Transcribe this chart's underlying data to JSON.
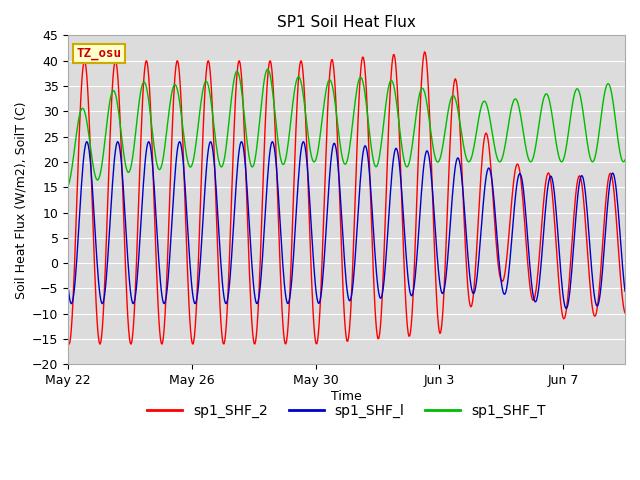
{
  "title": "SP1 Soil Heat Flux",
  "xlabel": "Time",
  "ylabel": "Soil Heat Flux (W/m2), SoilT (C)",
  "ylim": [
    -20,
    45
  ],
  "yticks": [
    -20,
    -15,
    -10,
    -5,
    0,
    5,
    10,
    15,
    20,
    25,
    30,
    35,
    40,
    45
  ],
  "bg_color": "#dcdcdc",
  "fig_color": "#ffffff",
  "tz_label": "TZ_osu",
  "tz_box_color": "#ffffcc",
  "tz_text_color": "#cc0000",
  "tz_edge_color": "#ccaa00",
  "line_colors": {
    "sp1_SHF_2": "#ff0000",
    "sp1_SHF_l": "#0000cc",
    "sp1_SHF_T": "#00bb00"
  },
  "legend_labels": [
    "sp1_SHF_2",
    "sp1_SHF_l",
    "sp1_SHF_T"
  ],
  "x_tick_labels": [
    "May 22",
    "May 26",
    "May 30",
    "Jun 3",
    "Jun 7"
  ],
  "x_tick_positions": [
    0,
    4,
    8,
    12,
    16
  ],
  "xlim": [
    0,
    18
  ],
  "n_points": 720
}
